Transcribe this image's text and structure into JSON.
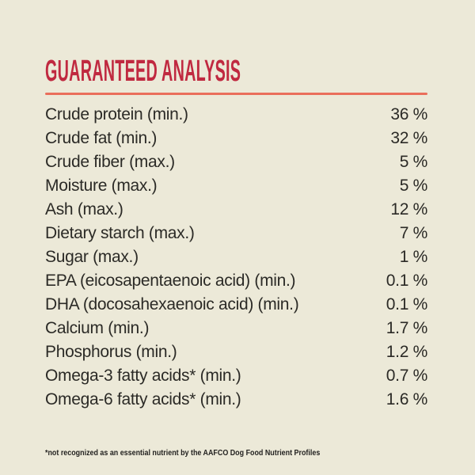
{
  "theme": {
    "bg": "#ece9d8",
    "heading": "#c02940",
    "divider": "#ea6e5b",
    "text": "#2b2a26",
    "footnote": "#232220"
  },
  "header": {
    "title": "GUARANTEED ANALYSIS"
  },
  "analysis": {
    "rows": [
      {
        "label": "Crude protein (min.)",
        "value": "36 %"
      },
      {
        "label": "Crude fat (min.)",
        "value": "32 %"
      },
      {
        "label": "Crude fiber (max.)",
        "value": "5 %"
      },
      {
        "label": "Moisture (max.)",
        "value": "5 %"
      },
      {
        "label": "Ash (max.)",
        "value": "12 %"
      },
      {
        "label": "Dietary starch (max.)",
        "value": "7 %"
      },
      {
        "label": "Sugar (max.)",
        "value": "1 %"
      },
      {
        "label": "EPA (eicosapentaenoic acid) (min.)",
        "value": "0.1 %"
      },
      {
        "label": "DHA (docosahexaenoic acid) (min.)",
        "value": "0.1 %"
      },
      {
        "label": "Calcium (min.)",
        "value": "1.7 %"
      },
      {
        "label": "Phosphorus (min.)",
        "value": "1.2 %"
      },
      {
        "label": "Omega-3 fatty acids* (min.)",
        "value": "0.7 %"
      },
      {
        "label": "Omega-6 fatty acids* (min.)",
        "value": "1.6 %"
      }
    ]
  },
  "footnote": {
    "text": "*not recognized as an essential nutrient by the AAFCO Dog Food Nutrient Profiles"
  }
}
